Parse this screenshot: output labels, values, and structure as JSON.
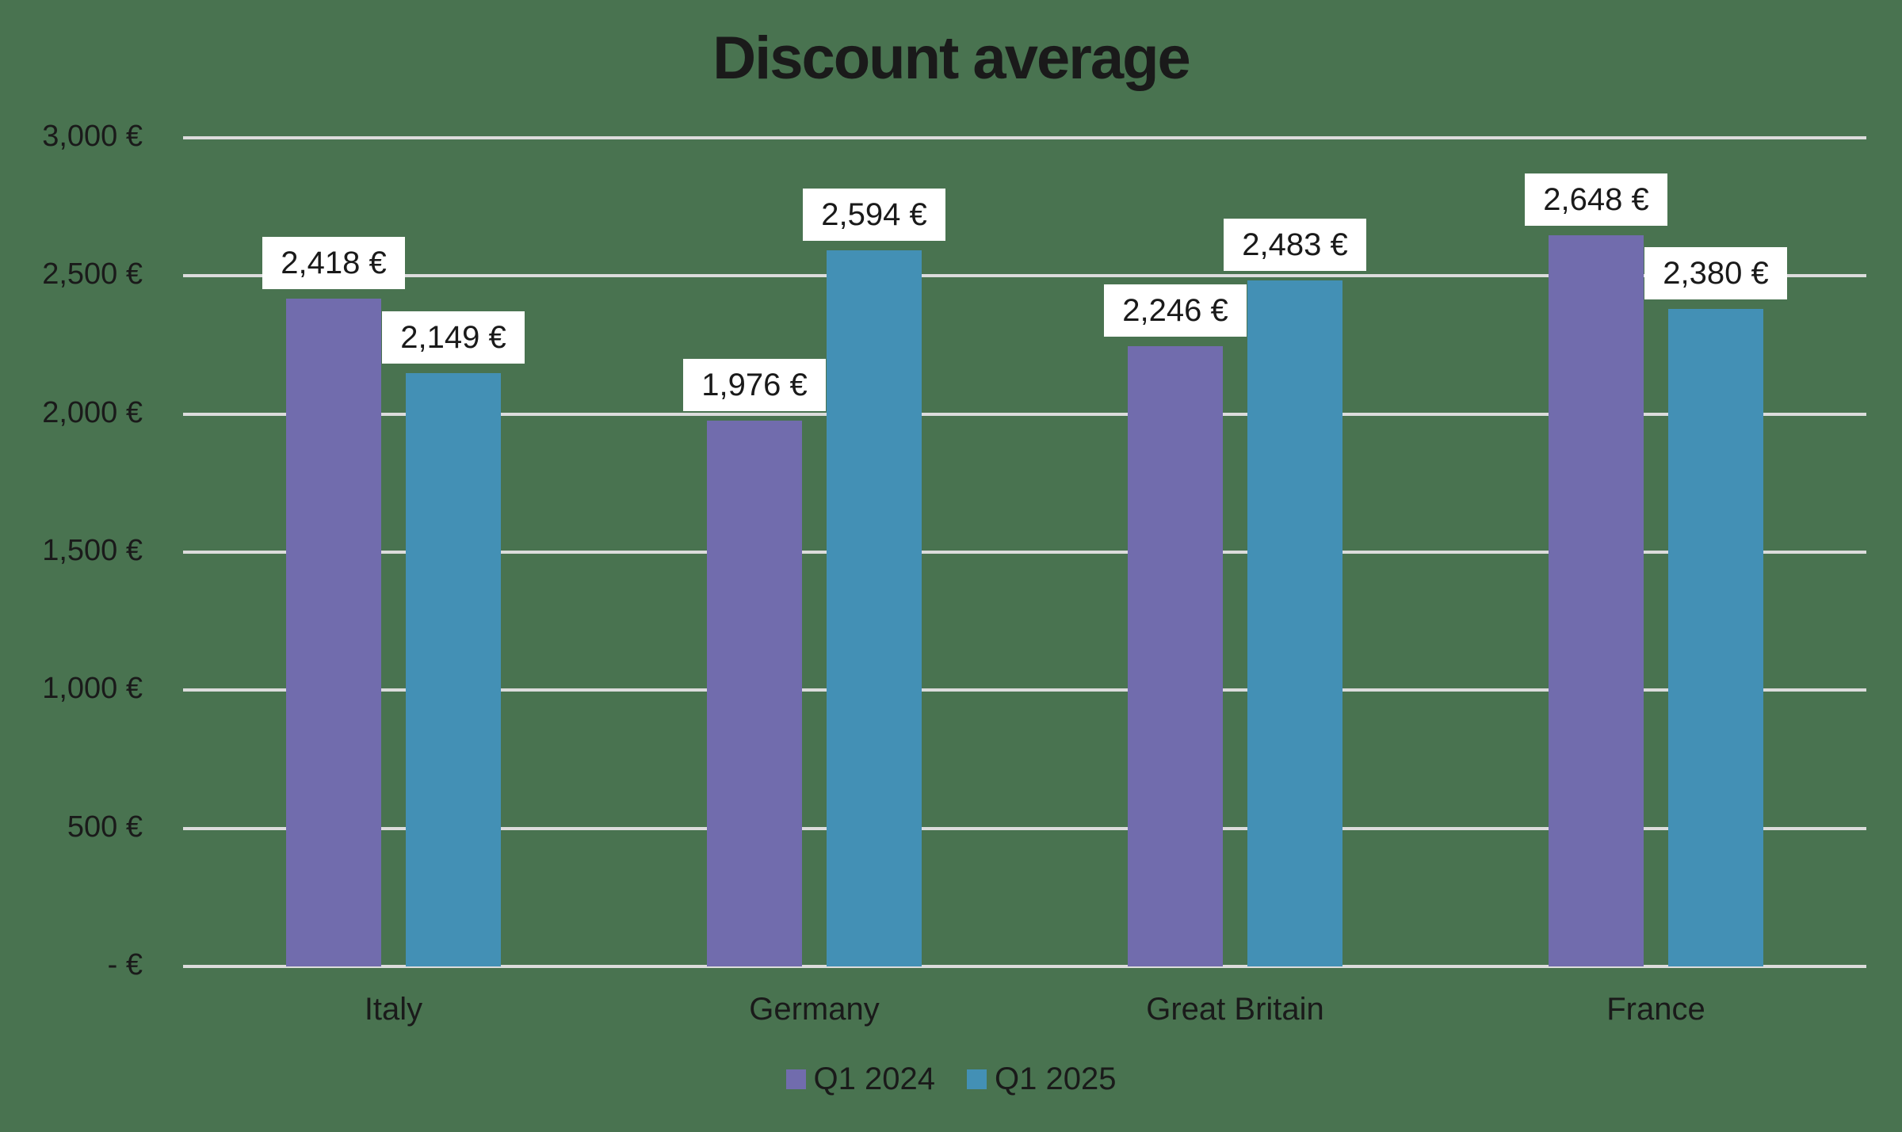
{
  "title": "Discount average",
  "colors": {
    "background": "#497350",
    "gridline": "#dcdcdc",
    "q1_2024": "#716cad",
    "q1_2025": "#4390b5",
    "label_bg": "#ffffff",
    "text": "#1a1a1a"
  },
  "y_axis": {
    "ticks": [
      {
        "value": 3000,
        "label": "3,000 €"
      },
      {
        "value": 2500,
        "label": "2,500 €"
      },
      {
        "value": 2000,
        "label": "2,000 €"
      },
      {
        "value": 1500,
        "label": "1,500 €"
      },
      {
        "value": 1000,
        "label": "1,000 €"
      },
      {
        "value": 500,
        "label": "500 €"
      },
      {
        "value": 0,
        "label": "-   €"
      }
    ]
  },
  "legend": {
    "items": [
      {
        "label": "Q1 2024",
        "color": "#716cad"
      },
      {
        "label": "Q1 2025",
        "color": "#4390b5"
      }
    ]
  },
  "chart_data": {
    "type": "bar",
    "title": "Discount average",
    "xlabel": "",
    "ylabel": "",
    "categories": [
      "Italy",
      "Germany",
      "Great Britain",
      "France"
    ],
    "series": [
      {
        "name": "Q1 2024",
        "color": "#716cad",
        "values": [
          2418,
          1976,
          2246,
          2648
        ],
        "labels": [
          "2,418 €",
          "1,976 €",
          "2,246 €",
          "2,648 €"
        ]
      },
      {
        "name": "Q1 2025",
        "color": "#4390b5",
        "values": [
          2149,
          2594,
          2483,
          2380
        ],
        "labels": [
          "2,149 €",
          "2,594 €",
          "2,483 €",
          "2,380 €"
        ]
      }
    ],
    "ylim": [
      0,
      3000
    ],
    "yticks": [
      0,
      500,
      1000,
      1500,
      2000,
      2500,
      3000
    ],
    "ytick_labels": [
      "-   €",
      "500 €",
      "1,000 €",
      "1,500 €",
      "2,000 €",
      "2,500 €",
      "3,000 €"
    ],
    "grid": true,
    "legend_position": "bottom",
    "data_labels": true
  }
}
